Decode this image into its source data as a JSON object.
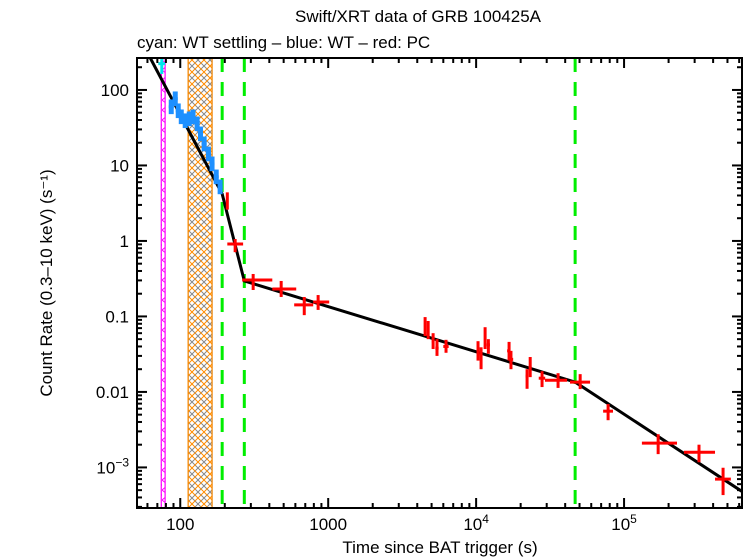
{
  "chart_data": {
    "type": "scatter",
    "title": "Swift/XRT data of GRB 100425A",
    "subtitle": "cyan: WT settling – blue: WT – red: PC",
    "xlabel": "Time since BAT trigger (s)",
    "ylabel": "Count Rate (0.3–10 keV) (s⁻¹)",
    "xscale": "log",
    "yscale": "log",
    "xlim": [
      51,
      627000
    ],
    "ylim": [
      0.00029,
      265
    ],
    "grid": false,
    "x_ticks": [
      {
        "v": 100,
        "label": "100"
      },
      {
        "v": 1000,
        "label": "1000"
      },
      {
        "v": 10000,
        "label": "10",
        "exp": "4"
      },
      {
        "v": 100000,
        "label": "10",
        "exp": "5"
      }
    ],
    "y_ticks": [
      {
        "v": 100,
        "label": "100"
      },
      {
        "v": 10,
        "label": "10"
      },
      {
        "v": 1,
        "label": "1"
      },
      {
        "v": 0.1,
        "label": "0.1"
      },
      {
        "v": 0.01,
        "label": "0.01"
      },
      {
        "v": 0.001,
        "label": "10",
        "exp": "−3"
      }
    ],
    "colors": {
      "wt_settling": "#00e5ee",
      "wt": "#1e90ff",
      "pc": "#ff0000",
      "model": "#000000",
      "breaks": "#00ee00",
      "orange_band": "#ff8c00",
      "magenta_band": "#ff00ff",
      "gray_band": "#888888"
    },
    "bands": [
      {
        "color": "magenta_band",
        "x0": 74.4,
        "x1": 79
      },
      {
        "color": "gray_band",
        "x0": 113,
        "x1": 164
      },
      {
        "color": "orange_band",
        "x0": 113,
        "x1": 164
      }
    ],
    "break_times": [
      192,
      271,
      46700
    ],
    "model": [
      [
        62.7,
        265
      ],
      [
        192,
        4.2
      ],
      [
        271,
        0.295
      ],
      [
        46700,
        0.0135
      ],
      [
        627000,
        0.00048
      ]
    ],
    "series": [
      {
        "name": "WT settling",
        "color": "wt_settling",
        "points": [
          [
            75,
            223,
            71,
            79,
            163,
            265
          ]
        ]
      },
      {
        "name": "WT",
        "color": "wt",
        "points": [
          [
            86.9,
            59.8
          ],
          [
            92.5,
            76.4
          ],
          [
            96.9,
            53
          ],
          [
            101.6,
            44.1
          ],
          [
            108,
            39.1
          ],
          [
            115,
            41.5
          ],
          [
            122,
            44.1
          ],
          [
            130,
            35.6
          ],
          [
            137,
            26.2
          ],
          [
            145,
            19.3
          ],
          [
            155,
            14.2
          ],
          [
            164,
            10.5
          ],
          [
            175,
            7.06
          ],
          [
            186,
            5.2
          ]
        ]
      },
      {
        "name": "PC",
        "color": "pc",
        "points": [
          [
            208,
            3.39,
            204,
            212,
            2.6,
            4.4
          ],
          [
            235,
            0.91,
            208,
            266,
            0.71,
            1.06
          ],
          [
            311,
            0.304,
            262,
            419,
            0.224,
            0.365
          ],
          [
            481,
            0.231,
            419,
            608,
            0.181,
            0.295
          ],
          [
            689,
            0.142,
            589,
            792,
            0.104,
            0.181
          ],
          [
            855,
            0.155,
            792,
            1016,
            0.122,
            0.192
          ],
          [
            4520,
            0.0769,
            4440,
            4600,
            0.055,
            0.098
          ],
          [
            4740,
            0.068,
            4660,
            4820,
            0.05,
            0.087
          ],
          [
            5120,
            0.047,
            5020,
            5220,
            0.037,
            0.06
          ],
          [
            5440,
            0.038,
            5300,
            5580,
            0.03,
            0.05
          ],
          [
            6260,
            0.04,
            6000,
            6520,
            0.033,
            0.049
          ],
          [
            10300,
            0.035,
            10100,
            10500,
            0.026,
            0.047
          ],
          [
            10800,
            0.031,
            10600,
            11000,
            0.02,
            0.039
          ],
          [
            11500,
            0.05,
            11300,
            11700,
            0.037,
            0.072
          ],
          [
            12100,
            0.042,
            11800,
            12400,
            0.032,
            0.05
          ],
          [
            16700,
            0.035,
            16200,
            17000,
            0.026,
            0.046
          ],
          [
            17200,
            0.027,
            17000,
            17800,
            0.02,
            0.035
          ],
          [
            22100,
            0.0162,
            21600,
            22600,
            0.011,
            0.02
          ],
          [
            23200,
            0.0213,
            22700,
            23700,
            0.0157,
            0.029
          ],
          [
            27900,
            0.0152,
            26500,
            29300,
            0.0116,
            0.0188
          ],
          [
            35800,
            0.0143,
            29200,
            41200,
            0.0113,
            0.0177
          ],
          [
            50500,
            0.0135,
            43100,
            58900,
            0.0109,
            0.0172
          ],
          [
            78000,
            0.00556,
            72200,
            84200,
            0.00422,
            0.0069
          ],
          [
            170000,
            0.0021,
            132000,
            228000,
            0.0015,
            0.00275
          ],
          [
            321000,
            0.00159,
            254000,
            412000,
            0.00117,
            0.002
          ],
          [
            467000,
            0.0007,
            412000,
            527000,
            0.00043,
            0.00099
          ]
        ]
      }
    ]
  }
}
